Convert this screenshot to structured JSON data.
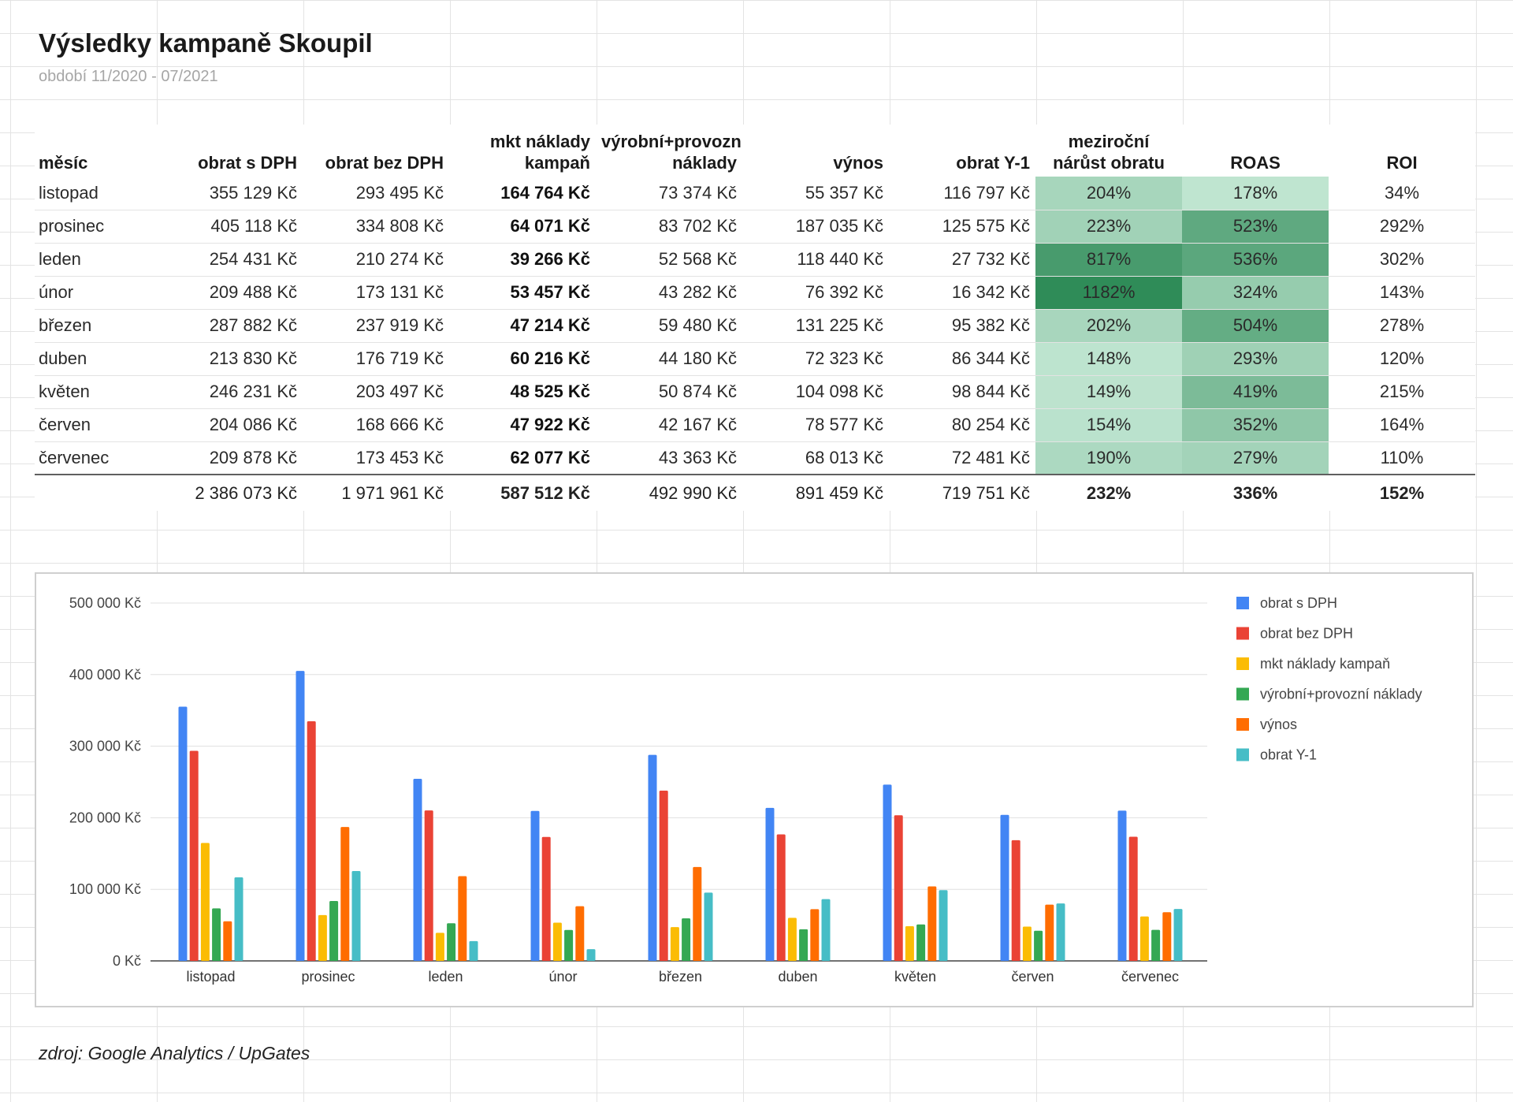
{
  "title": "Výsledky kampaně Skoupil",
  "subtitle": "období 11/2020 - 07/2021",
  "table": {
    "headers": [
      "měsíc",
      "obrat s DPH",
      "obrat bez DPH",
      "mkt náklady kampaň",
      "výrobní+provozní náklady",
      "výnos",
      "obrat Y-1",
      "meziroční nárůst obratu",
      "ROAS",
      "ROI"
    ],
    "rows": [
      {
        "month": "listopad",
        "obrat_dph": "355 129 Kč",
        "obrat_bez": "293 495 Kč",
        "mkt": "164 764 Kč",
        "vyrob": "73 374 Kč",
        "vynos": "55 357 Kč",
        "obrat_y1": "116 797 Kč",
        "narust": "204%",
        "roas": "178%",
        "roi": "34%"
      },
      {
        "month": "prosinec",
        "obrat_dph": "405 118 Kč",
        "obrat_bez": "334 808 Kč",
        "mkt": "64 071 Kč",
        "vyrob": "83 702 Kč",
        "vynos": "187 035 Kč",
        "obrat_y1": "125 575 Kč",
        "narust": "223%",
        "roas": "523%",
        "roi": "292%"
      },
      {
        "month": "leden",
        "obrat_dph": "254 431 Kč",
        "obrat_bez": "210 274 Kč",
        "mkt": "39 266 Kč",
        "vyrob": "52 568 Kč",
        "vynos": "118 440 Kč",
        "obrat_y1": "27 732 Kč",
        "narust": "817%",
        "roas": "536%",
        "roi": "302%"
      },
      {
        "month": "únor",
        "obrat_dph": "209 488 Kč",
        "obrat_bez": "173 131 Kč",
        "mkt": "53 457 Kč",
        "vyrob": "43 282 Kč",
        "vynos": "76 392 Kč",
        "obrat_y1": "16 342 Kč",
        "narust": "1182%",
        "roas": "324%",
        "roi": "143%"
      },
      {
        "month": "březen",
        "obrat_dph": "287 882 Kč",
        "obrat_bez": "237 919 Kč",
        "mkt": "47 214 Kč",
        "vyrob": "59 480 Kč",
        "vynos": "131 225 Kč",
        "obrat_y1": "95 382 Kč",
        "narust": "202%",
        "roas": "504%",
        "roi": "278%"
      },
      {
        "month": "duben",
        "obrat_dph": "213 830 Kč",
        "obrat_bez": "176 719 Kč",
        "mkt": "60 216 Kč",
        "vyrob": "44 180 Kč",
        "vynos": "72 323 Kč",
        "obrat_y1": "86 344 Kč",
        "narust": "148%",
        "roas": "293%",
        "roi": "120%"
      },
      {
        "month": "květen",
        "obrat_dph": "246 231 Kč",
        "obrat_bez": "203 497 Kč",
        "mkt": "48 525 Kč",
        "vyrob": "50 874 Kč",
        "vynos": "104 098 Kč",
        "obrat_y1": "98 844 Kč",
        "narust": "149%",
        "roas": "419%",
        "roi": "215%"
      },
      {
        "month": "červen",
        "obrat_dph": "204 086 Kč",
        "obrat_bez": "168 666 Kč",
        "mkt": "47 922 Kč",
        "vyrob": "42 167 Kč",
        "vynos": "78 577 Kč",
        "obrat_y1": "80 254 Kč",
        "narust": "154%",
        "roas": "352%",
        "roi": "164%"
      },
      {
        "month": "červenec",
        "obrat_dph": "209 878 Kč",
        "obrat_bez": "173 453 Kč",
        "mkt": "62 077 Kč",
        "vyrob": "43 363 Kč",
        "vynos": "68 013 Kč",
        "obrat_y1": "72 481 Kč",
        "narust": "190%",
        "roas": "279%",
        "roi": "110%"
      }
    ],
    "totals": {
      "month": "",
      "obrat_dph": "2 386 073 Kč",
      "obrat_bez": "1 971 961 Kč",
      "mkt": "587 512 Kč",
      "vyrob": "492 990 Kč",
      "vynos": "891 459 Kč",
      "obrat_y1": "719 751 Kč",
      "narust": "232%",
      "roas": "336%",
      "roi": "152%"
    },
    "heatmap_colors": {
      "low": "#b8e0c8",
      "mid": "#5cbd87",
      "high": "#2e8b57"
    }
  },
  "chart_data": {
    "type": "bar",
    "categories": [
      "listopad",
      "prosinec",
      "leden",
      "únor",
      "březen",
      "duben",
      "květen",
      "červen",
      "červenec"
    ],
    "series": [
      {
        "name": "obrat s DPH",
        "color": "#4285f4",
        "values": [
          355129,
          405118,
          254431,
          209488,
          287882,
          213830,
          246231,
          204086,
          209878
        ]
      },
      {
        "name": "obrat bez DPH",
        "color": "#ea4335",
        "values": [
          293495,
          334808,
          210274,
          173131,
          237919,
          176719,
          203497,
          168666,
          173453
        ]
      },
      {
        "name": "mkt náklady kampaň",
        "color": "#fbbc04",
        "values": [
          164764,
          64071,
          39266,
          53457,
          47214,
          60216,
          48525,
          47922,
          62077
        ]
      },
      {
        "name": "výrobní+provozní náklady",
        "color": "#34a853",
        "values": [
          73374,
          83702,
          52568,
          43282,
          59480,
          44180,
          50874,
          42167,
          43363
        ]
      },
      {
        "name": "výnos",
        "color": "#ff6d01",
        "values": [
          55357,
          187035,
          118440,
          76392,
          131225,
          72323,
          104098,
          78577,
          68013
        ]
      },
      {
        "name": "obrat Y-1",
        "color": "#46bdc6",
        "values": [
          116797,
          125575,
          27732,
          16342,
          95382,
          86344,
          98844,
          80254,
          72481
        ]
      }
    ],
    "y_ticks": [
      "0 Kč",
      "100 000 Kč",
      "200 000 Kč",
      "300 000 Kč",
      "400 000 Kč",
      "500 000 Kč"
    ],
    "ylim": [
      0,
      500000
    ],
    "legend": "right",
    "grid": true
  },
  "source": "zdroj: Google Analytics / UpGates"
}
